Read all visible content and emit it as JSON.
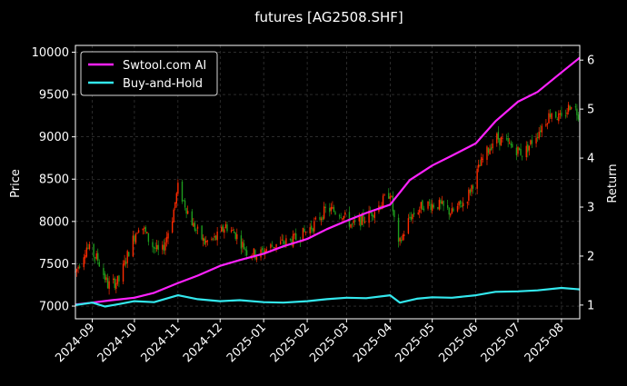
{
  "chart_data": {
    "type": "line",
    "title": "futures [AG2508.SHF]",
    "ylabel": "Price",
    "y2label": "Return",
    "background": "#000000",
    "grid": true,
    "legend_position": "top-left",
    "x_ticks": [
      "2024-09",
      "2024-10",
      "2024-11",
      "2024-12",
      "2025-01",
      "2025-02",
      "2025-03",
      "2025-04",
      "2025-05",
      "2025-06",
      "2025-07",
      "2025-08"
    ],
    "xlim": [
      "2024-08-20",
      "2025-08-14"
    ],
    "ylim": [
      6850,
      10080
    ],
    "y_ticks": [
      7000,
      7500,
      8000,
      8500,
      9000,
      9500,
      10000
    ],
    "y2lim": [
      0.72,
      6.3
    ],
    "y2_ticks": [
      1,
      2,
      3,
      4,
      5,
      6
    ],
    "candle_colors": {
      "up": "#ff2a00",
      "down": "#1e9e1e"
    },
    "series": [
      {
        "name": "Swtool.com AI",
        "axis": "right",
        "color": "#ff22ff",
        "points": [
          [
            "2024-08-20",
            1.01
          ],
          [
            "2024-09-01",
            1.05
          ],
          [
            "2024-09-15",
            1.1
          ],
          [
            "2024-10-01",
            1.15
          ],
          [
            "2024-10-15",
            1.25
          ],
          [
            "2024-11-01",
            1.45
          ],
          [
            "2024-11-15",
            1.6
          ],
          [
            "2024-12-01",
            1.8
          ],
          [
            "2024-12-15",
            1.92
          ],
          [
            "2025-01-01",
            2.05
          ],
          [
            "2025-01-15",
            2.2
          ],
          [
            "2025-02-01",
            2.35
          ],
          [
            "2025-02-15",
            2.55
          ],
          [
            "2025-03-01",
            2.72
          ],
          [
            "2025-03-15",
            2.88
          ],
          [
            "2025-04-01",
            3.05
          ],
          [
            "2025-04-15",
            3.55
          ],
          [
            "2025-05-01",
            3.85
          ],
          [
            "2025-05-15",
            4.05
          ],
          [
            "2025-06-01",
            4.3
          ],
          [
            "2025-06-15",
            4.75
          ],
          [
            "2025-07-01",
            5.15
          ],
          [
            "2025-07-15",
            5.35
          ],
          [
            "2025-08-01",
            5.75
          ],
          [
            "2025-08-14",
            6.05
          ]
        ]
      },
      {
        "name": "Buy-and-Hold",
        "axis": "right",
        "color": "#33e8ee",
        "points": [
          [
            "2024-08-20",
            1.0
          ],
          [
            "2024-09-01",
            1.05
          ],
          [
            "2024-09-10",
            0.97
          ],
          [
            "2024-09-20",
            1.02
          ],
          [
            "2024-10-01",
            1.08
          ],
          [
            "2024-10-15",
            1.06
          ],
          [
            "2024-11-01",
            1.2
          ],
          [
            "2024-11-15",
            1.12
          ],
          [
            "2024-12-01",
            1.08
          ],
          [
            "2024-12-15",
            1.1
          ],
          [
            "2025-01-01",
            1.06
          ],
          [
            "2025-01-15",
            1.05
          ],
          [
            "2025-02-01",
            1.08
          ],
          [
            "2025-02-15",
            1.12
          ],
          [
            "2025-03-01",
            1.15
          ],
          [
            "2025-03-15",
            1.14
          ],
          [
            "2025-04-01",
            1.2
          ],
          [
            "2025-04-08",
            1.05
          ],
          [
            "2025-04-20",
            1.13
          ],
          [
            "2025-05-01",
            1.16
          ],
          [
            "2025-05-15",
            1.15
          ],
          [
            "2025-06-01",
            1.2
          ],
          [
            "2025-06-15",
            1.27
          ],
          [
            "2025-07-01",
            1.28
          ],
          [
            "2025-07-15",
            1.3
          ],
          [
            "2025-08-01",
            1.35
          ],
          [
            "2025-08-14",
            1.32
          ]
        ]
      }
    ],
    "price_path": [
      [
        "2024-08-20",
        7400
      ],
      [
        "2024-08-28",
        7700
      ],
      [
        "2024-09-05",
        7550
      ],
      [
        "2024-09-12",
        7250
      ],
      [
        "2024-09-20",
        7300
      ],
      [
        "2024-09-28",
        7700
      ],
      [
        "2024-10-05",
        8000
      ],
      [
        "2024-10-12",
        7750
      ],
      [
        "2024-10-20",
        7600
      ],
      [
        "2024-10-28",
        8050
      ],
      [
        "2024-11-01",
        8400
      ],
      [
        "2024-11-06",
        8200
      ],
      [
        "2024-11-12",
        7950
      ],
      [
        "2024-11-20",
        7750
      ],
      [
        "2024-11-28",
        7800
      ],
      [
        "2024-12-05",
        7950
      ],
      [
        "2024-12-12",
        7850
      ],
      [
        "2024-12-20",
        7650
      ],
      [
        "2024-12-28",
        7600
      ],
      [
        "2025-01-05",
        7700
      ],
      [
        "2025-01-15",
        7750
      ],
      [
        "2025-01-25",
        7800
      ],
      [
        "2025-02-05",
        7950
      ],
      [
        "2025-02-15",
        8150
      ],
      [
        "2025-02-25",
        8100
      ],
      [
        "2025-03-05",
        7950
      ],
      [
        "2025-03-15",
        8050
      ],
      [
        "2025-03-25",
        8200
      ],
      [
        "2025-04-01",
        8350
      ],
      [
        "2025-04-07",
        7700
      ],
      [
        "2025-04-15",
        8050
      ],
      [
        "2025-04-25",
        8200
      ],
      [
        "2025-05-05",
        8200
      ],
      [
        "2025-05-15",
        8100
      ],
      [
        "2025-05-25",
        8250
      ],
      [
        "2025-06-05",
        8700
      ],
      [
        "2025-06-15",
        9000
      ],
      [
        "2025-06-25",
        8900
      ],
      [
        "2025-07-05",
        8800
      ],
      [
        "2025-07-15",
        9050
      ],
      [
        "2025-07-25",
        9300
      ],
      [
        "2025-08-01",
        9200
      ],
      [
        "2025-08-08",
        9400
      ],
      [
        "2025-08-14",
        9250
      ]
    ]
  }
}
